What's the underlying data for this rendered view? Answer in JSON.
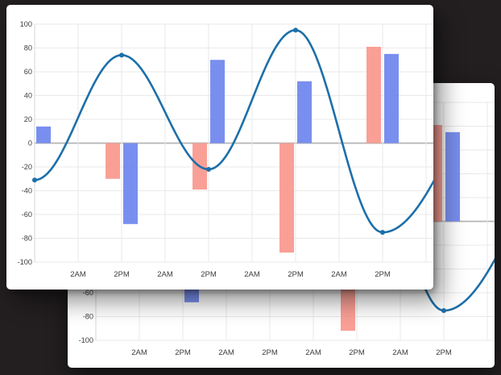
{
  "page": {
    "background_color": "#231f20",
    "card_background_color": "#ffffff"
  },
  "cards": [
    {
      "id": "front-chart-card"
    },
    {
      "id": "back-chart-card"
    }
  ],
  "chart_data": {
    "type": "combo-bar-line",
    "title": "",
    "xlabel": "",
    "ylabel": "",
    "x_tick_labels": [
      "2AM",
      "2PM",
      "2AM",
      "2PM",
      "2AM",
      "2PM",
      "2AM",
      "2PM"
    ],
    "y_tick_labels": [
      "100",
      "80",
      "60",
      "40",
      "20",
      "0",
      "-20",
      "-40",
      "-60",
      "-80",
      "-100"
    ],
    "ylim": [
      -100,
      100
    ],
    "grid": true,
    "legend": "none",
    "data_slots": [
      0,
      2,
      4,
      6,
      8
    ],
    "series": [
      {
        "name": "bar-series-red",
        "type": "bar",
        "color": "#fa9a90",
        "values": [
          null,
          -30,
          -39,
          -92,
          81
        ]
      },
      {
        "name": "bar-series-blue",
        "type": "bar",
        "color": "#7289ee",
        "values": [
          14,
          -68,
          70,
          52,
          75
        ]
      },
      {
        "name": "line-series",
        "type": "line",
        "color": "#1d6fa9",
        "values": [
          -31,
          74,
          -22,
          95,
          -75
        ],
        "continues_off_right_edge": true
      }
    ],
    "axis_colors": {
      "grid": "#e9e9e9",
      "zero_line": "#b5b5b5",
      "axis_line": "#d6d6d6",
      "tick_text": "#3d3d3d"
    }
  }
}
